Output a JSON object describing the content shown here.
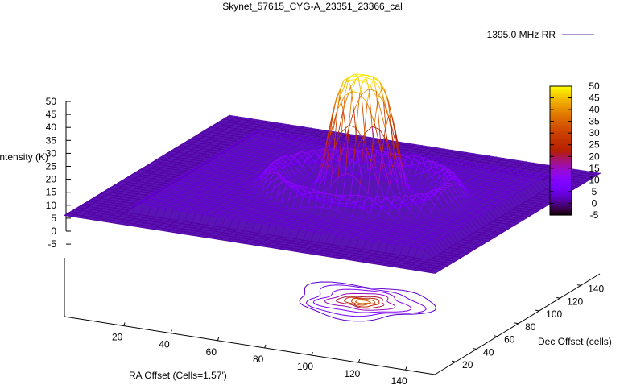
{
  "chart_data": {
    "type": "surface",
    "title": "Skynet_57615_CYG-A_23351_23366_cal",
    "legend": [
      {
        "label": "1395.0 MHz RR",
        "placement": "top-right"
      }
    ],
    "xlabel": "RA Offset (Cells=1.57')",
    "ylabel": "Dec Offset (cells)",
    "zlabel": "Intensity (K)",
    "xticks": [
      "20",
      "40",
      "60",
      "80",
      "100",
      "120",
      "140"
    ],
    "yticks": [
      "20",
      "40",
      "60",
      "80",
      "100",
      "120",
      "140"
    ],
    "zticks": [
      "50",
      "45",
      "40",
      "35",
      "30",
      "25",
      "20",
      "15",
      "10",
      "5",
      "0",
      "-5"
    ],
    "xlim": [
      0,
      150
    ],
    "ylim": [
      0,
      150
    ],
    "zlim": [
      -5,
      50
    ],
    "colorbar": {
      "range": [
        -5,
        50
      ],
      "ticks": [
        "50",
        "45",
        "40",
        "35",
        "30",
        "25",
        "20",
        "15",
        "10",
        "5",
        "0",
        "-5"
      ],
      "palette": [
        "#000000",
        "#5500cc",
        "#8a10ff",
        "#b0208a",
        "#c83010",
        "#e07000",
        "#f0b000",
        "#ffff00"
      ]
    },
    "features": {
      "background_level": 1,
      "source_center": {
        "ra": 88,
        "dec": 73
      },
      "source_peak": 45,
      "ring_level": 8,
      "contours_on_base": true
    }
  }
}
